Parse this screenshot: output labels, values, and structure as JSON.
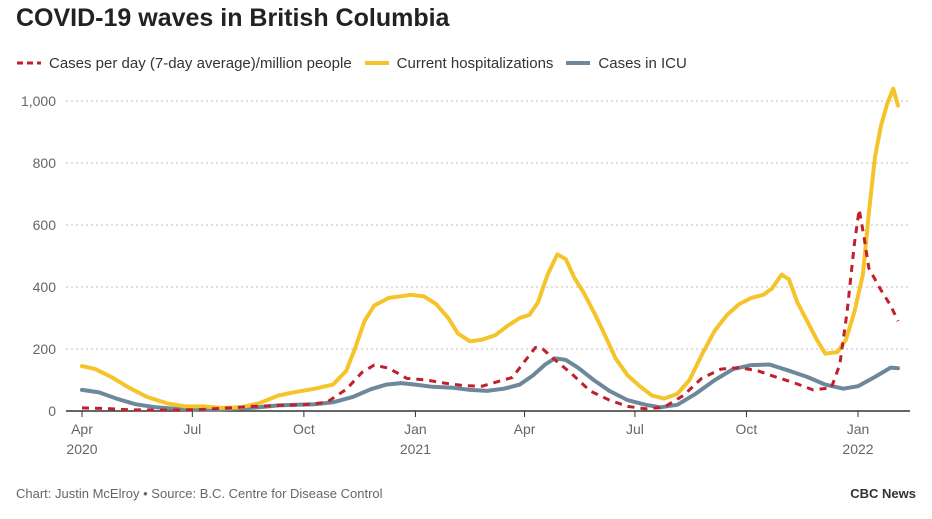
{
  "chart_data": {
    "type": "line",
    "title": "COVID-19 waves in British Columbia",
    "xlabel": "",
    "ylabel": "",
    "ylim": [
      0,
      1050
    ],
    "yticks": [
      0,
      200,
      400,
      600,
      800,
      1000
    ],
    "ytick_labels": [
      "0",
      "200",
      "400",
      "600",
      "800",
      "1,000"
    ],
    "xlim": [
      "2020-04-01",
      "2022-02-05"
    ],
    "xticks": [
      {
        "date": "2020-04-01",
        "label": "Apr",
        "year": "2020"
      },
      {
        "date": "2020-07-01",
        "label": "Jul",
        "year": ""
      },
      {
        "date": "2020-10-01",
        "label": "Oct",
        "year": ""
      },
      {
        "date": "2021-01-01",
        "label": "Jan",
        "year": "2021"
      },
      {
        "date": "2021-04-01",
        "label": "Apr",
        "year": ""
      },
      {
        "date": "2021-07-01",
        "label": "Jul",
        "year": ""
      },
      {
        "date": "2021-10-01",
        "label": "Oct",
        "year": ""
      },
      {
        "date": "2022-01-01",
        "label": "Jan",
        "year": "2022"
      }
    ],
    "grid": "horizontal-dotted",
    "legend_position": "top-left",
    "series": [
      {
        "name": "Cases per day (7-day average)/million people",
        "color": "#c0202a",
        "style": "dashed",
        "points": [
          [
            "2020-04-01",
            10
          ],
          [
            "2020-04-20",
            8
          ],
          [
            "2020-05-10",
            4
          ],
          [
            "2020-06-01",
            3
          ],
          [
            "2020-06-20",
            3
          ],
          [
            "2020-07-10",
            5
          ],
          [
            "2020-08-01",
            10
          ],
          [
            "2020-08-20",
            15
          ],
          [
            "2020-09-10",
            18
          ],
          [
            "2020-10-01",
            20
          ],
          [
            "2020-10-20",
            28
          ],
          [
            "2020-11-05",
            70
          ],
          [
            "2020-11-18",
            125
          ],
          [
            "2020-11-28",
            148
          ],
          [
            "2020-12-10",
            138
          ],
          [
            "2020-12-25",
            105
          ],
          [
            "2021-01-10",
            100
          ],
          [
            "2021-01-25",
            90
          ],
          [
            "2021-02-10",
            82
          ],
          [
            "2021-02-25",
            80
          ],
          [
            "2021-03-10",
            95
          ],
          [
            "2021-03-22",
            108
          ],
          [
            "2021-04-01",
            160
          ],
          [
            "2021-04-10",
            205
          ],
          [
            "2021-04-16",
            200
          ],
          [
            "2021-04-25",
            168
          ],
          [
            "2021-05-10",
            120
          ],
          [
            "2021-05-25",
            65
          ],
          [
            "2021-06-10",
            35
          ],
          [
            "2021-06-25",
            15
          ],
          [
            "2021-07-10",
            7
          ],
          [
            "2021-07-25",
            12
          ],
          [
            "2021-08-10",
            50
          ],
          [
            "2021-08-25",
            105
          ],
          [
            "2021-09-10",
            135
          ],
          [
            "2021-09-25",
            140
          ],
          [
            "2021-10-10",
            130
          ],
          [
            "2021-10-25",
            110
          ],
          [
            "2021-11-10",
            90
          ],
          [
            "2021-11-25",
            68
          ],
          [
            "2021-12-10",
            75
          ],
          [
            "2021-12-17",
            150
          ],
          [
            "2021-12-23",
            320
          ],
          [
            "2021-12-29",
            540
          ],
          [
            "2022-01-02",
            650
          ],
          [
            "2022-01-06",
            560
          ],
          [
            "2022-01-10",
            460
          ],
          [
            "2022-01-20",
            390
          ],
          [
            "2022-01-28",
            340
          ],
          [
            "2022-02-03",
            290
          ]
        ]
      },
      {
        "name": "Current hospitalizations",
        "color": "#f5c32a",
        "style": "solid",
        "points": [
          [
            "2020-04-01",
            145
          ],
          [
            "2020-04-12",
            135
          ],
          [
            "2020-04-25",
            110
          ],
          [
            "2020-05-10",
            75
          ],
          [
            "2020-05-25",
            45
          ],
          [
            "2020-06-10",
            25
          ],
          [
            "2020-06-25",
            15
          ],
          [
            "2020-07-10",
            15
          ],
          [
            "2020-07-25",
            10
          ],
          [
            "2020-08-10",
            12
          ],
          [
            "2020-08-25",
            25
          ],
          [
            "2020-09-10",
            50
          ],
          [
            "2020-09-25",
            62
          ],
          [
            "2020-10-10",
            72
          ],
          [
            "2020-10-25",
            85
          ],
          [
            "2020-11-05",
            130
          ],
          [
            "2020-11-12",
            200
          ],
          [
            "2020-11-20",
            290
          ],
          [
            "2020-11-28",
            340
          ],
          [
            "2020-12-10",
            365
          ],
          [
            "2020-12-20",
            370
          ],
          [
            "2020-12-28",
            375
          ],
          [
            "2021-01-08",
            370
          ],
          [
            "2021-01-18",
            345
          ],
          [
            "2021-01-28",
            300
          ],
          [
            "2021-02-05",
            250
          ],
          [
            "2021-02-15",
            225
          ],
          [
            "2021-02-25",
            230
          ],
          [
            "2021-03-08",
            245
          ],
          [
            "2021-03-18",
            275
          ],
          [
            "2021-03-28",
            300
          ],
          [
            "2021-04-05",
            310
          ],
          [
            "2021-04-12",
            350
          ],
          [
            "2021-04-20",
            440
          ],
          [
            "2021-04-28",
            505
          ],
          [
            "2021-05-05",
            490
          ],
          [
            "2021-05-12",
            430
          ],
          [
            "2021-05-20",
            380
          ],
          [
            "2021-05-28",
            320
          ],
          [
            "2021-06-05",
            255
          ],
          [
            "2021-06-15",
            170
          ],
          [
            "2021-06-25",
            115
          ],
          [
            "2021-07-05",
            80
          ],
          [
            "2021-07-15",
            50
          ],
          [
            "2021-07-25",
            40
          ],
          [
            "2021-08-05",
            55
          ],
          [
            "2021-08-15",
            100
          ],
          [
            "2021-08-25",
            180
          ],
          [
            "2021-09-05",
            260
          ],
          [
            "2021-09-15",
            310
          ],
          [
            "2021-09-25",
            345
          ],
          [
            "2021-10-05",
            365
          ],
          [
            "2021-10-15",
            375
          ],
          [
            "2021-10-22",
            395
          ],
          [
            "2021-10-30",
            440
          ],
          [
            "2021-11-05",
            425
          ],
          [
            "2021-11-12",
            350
          ],
          [
            "2021-11-20",
            290
          ],
          [
            "2021-11-28",
            230
          ],
          [
            "2021-12-05",
            185
          ],
          [
            "2021-12-15",
            190
          ],
          [
            "2021-12-22",
            230
          ],
          [
            "2021-12-29",
            320
          ],
          [
            "2022-01-05",
            440
          ],
          [
            "2022-01-10",
            640
          ],
          [
            "2022-01-15",
            820
          ],
          [
            "2022-01-20",
            920
          ],
          [
            "2022-01-25",
            990
          ],
          [
            "2022-01-30",
            1040
          ],
          [
            "2022-02-03",
            985
          ]
        ]
      },
      {
        "name": "Cases in ICU",
        "color": "#6e889b",
        "style": "solid",
        "points": [
          [
            "2020-04-01",
            68
          ],
          [
            "2020-04-15",
            60
          ],
          [
            "2020-05-01",
            38
          ],
          [
            "2020-05-15",
            22
          ],
          [
            "2020-06-01",
            12
          ],
          [
            "2020-06-20",
            6
          ],
          [
            "2020-07-10",
            4
          ],
          [
            "2020-07-25",
            5
          ],
          [
            "2020-08-10",
            8
          ],
          [
            "2020-08-25",
            12
          ],
          [
            "2020-09-10",
            18
          ],
          [
            "2020-09-25",
            20
          ],
          [
            "2020-10-10",
            22
          ],
          [
            "2020-10-25",
            28
          ],
          [
            "2020-11-10",
            45
          ],
          [
            "2020-11-25",
            70
          ],
          [
            "2020-12-08",
            85
          ],
          [
            "2020-12-20",
            90
          ],
          [
            "2021-01-01",
            85
          ],
          [
            "2021-01-15",
            78
          ],
          [
            "2021-02-01",
            75
          ],
          [
            "2021-02-15",
            68
          ],
          [
            "2021-03-01",
            65
          ],
          [
            "2021-03-15",
            72
          ],
          [
            "2021-03-28",
            85
          ],
          [
            "2021-04-08",
            115
          ],
          [
            "2021-04-18",
            150
          ],
          [
            "2021-04-26",
            170
          ],
          [
            "2021-05-05",
            165
          ],
          [
            "2021-05-15",
            140
          ],
          [
            "2021-05-28",
            100
          ],
          [
            "2021-06-10",
            65
          ],
          [
            "2021-06-25",
            35
          ],
          [
            "2021-07-10",
            20
          ],
          [
            "2021-07-22",
            12
          ],
          [
            "2021-08-05",
            20
          ],
          [
            "2021-08-20",
            55
          ],
          [
            "2021-09-05",
            100
          ],
          [
            "2021-09-20",
            135
          ],
          [
            "2021-10-05",
            148
          ],
          [
            "2021-10-20",
            150
          ],
          [
            "2021-11-05",
            130
          ],
          [
            "2021-11-20",
            110
          ],
          [
            "2021-12-05",
            85
          ],
          [
            "2021-12-20",
            72
          ],
          [
            "2022-01-01",
            80
          ],
          [
            "2022-01-15",
            110
          ],
          [
            "2022-01-28",
            140
          ],
          [
            "2022-02-03",
            138
          ]
        ]
      }
    ]
  },
  "footer": {
    "credit": "Chart: Justin McElroy • Source: B.C. Centre for Disease Control",
    "brand": "CBC News"
  }
}
